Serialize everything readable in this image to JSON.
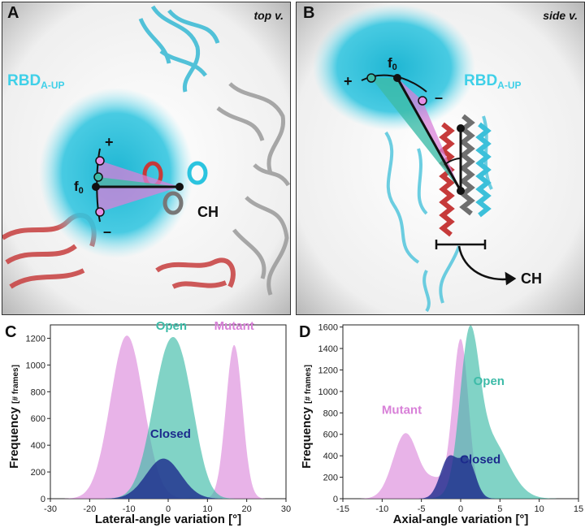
{
  "panels": {
    "a": {
      "letter": "A",
      "view": "top v.",
      "rbd_main": "RBD",
      "rbd_sub": "A-UP",
      "plus": "+",
      "minus": "–",
      "f0_main": "f",
      "f0_sub": "0",
      "ch": "CH"
    },
    "b": {
      "letter": "B",
      "view": "side v.",
      "rbd_main": "RBD",
      "rbd_sub": "A-UP",
      "plus": "+",
      "minus": "–",
      "f0_main": "f",
      "f0_sub": "0",
      "ch": "CH"
    },
    "c": {
      "letter": "C"
    },
    "d": {
      "letter": "D"
    }
  },
  "colors": {
    "open": "#3dbba8",
    "mutant": "#d880d8",
    "closed": "#1c2a8c",
    "rbd_label": "#3fd0e8",
    "cyan_protein": "#2bc4df",
    "red_protein": "#c63a3a"
  },
  "chart_data": [
    {
      "type": "area",
      "panel": "C",
      "xlabel": "Lateral-angle variation [°]",
      "ylabel": "Frequency",
      "ylabel_unit": "[# frames]",
      "xlim": [
        -30,
        30
      ],
      "ylim": [
        0,
        1300
      ],
      "xticks": [
        -30,
        -20,
        -10,
        0,
        10,
        20,
        30
      ],
      "yticks": [
        0,
        200,
        400,
        600,
        800,
        1000,
        1200
      ],
      "series": [
        {
          "name": "Mutant",
          "components": [
            {
              "mu": -10.5,
              "sigma": 4.2,
              "amp": 1220
            },
            {
              "mu": 16.8,
              "sigma": 2.1,
              "amp": 1150
            }
          ]
        },
        {
          "name": "Open",
          "components": [
            {
              "mu": 0.2,
              "sigma": 4.3,
              "amp": 1080
            },
            {
              "mu": 5.0,
              "sigma": 3.2,
              "amp": 320
            }
          ]
        },
        {
          "name": "Closed",
          "components": [
            {
              "mu": -1.2,
              "sigma": 4.4,
              "amp": 300
            }
          ]
        }
      ],
      "labels": [
        {
          "series": "Open",
          "x": 0.8,
          "y": 1265
        },
        {
          "series": "Mutant",
          "x": 16.8,
          "y": 1265
        },
        {
          "series": "Closed",
          "x": 0.6,
          "y": 455
        }
      ]
    },
    {
      "type": "area",
      "panel": "D",
      "xlabel": "Axial-angle variation [°]",
      "ylabel": "Frequency",
      "ylabel_unit": "[# frames]",
      "xlim": [
        -15,
        15
      ],
      "ylim": [
        0,
        1620
      ],
      "xticks": [
        -15,
        -10,
        -5,
        0,
        5,
        10,
        15
      ],
      "yticks": [
        0,
        200,
        400,
        600,
        800,
        1000,
        1200,
        1400,
        1600
      ],
      "series": [
        {
          "name": "Mutant",
          "components": [
            {
              "mu": -7.0,
              "sigma": 1.6,
              "amp": 610
            },
            {
              "mu": -3.0,
              "sigma": 1.3,
              "amp": 160
            },
            {
              "mu": 0.0,
              "sigma": 1.0,
              "amp": 1480
            }
          ]
        },
        {
          "name": "Open",
          "components": [
            {
              "mu": 1.1,
              "sigma": 1.2,
              "amp": 1280
            },
            {
              "mu": 3.6,
              "sigma": 2.4,
              "amp": 560
            }
          ]
        },
        {
          "name": "Closed",
          "components": [
            {
              "mu": -1.5,
              "sigma": 1.1,
              "amp": 380
            },
            {
              "mu": 0.9,
              "sigma": 1.0,
              "amp": 350
            }
          ]
        }
      ],
      "labels": [
        {
          "series": "Open",
          "x": 3.6,
          "y": 1060
        },
        {
          "series": "Mutant",
          "x": -7.5,
          "y": 790
        },
        {
          "series": "Closed",
          "x": 2.5,
          "y": 330
        }
      ]
    }
  ]
}
